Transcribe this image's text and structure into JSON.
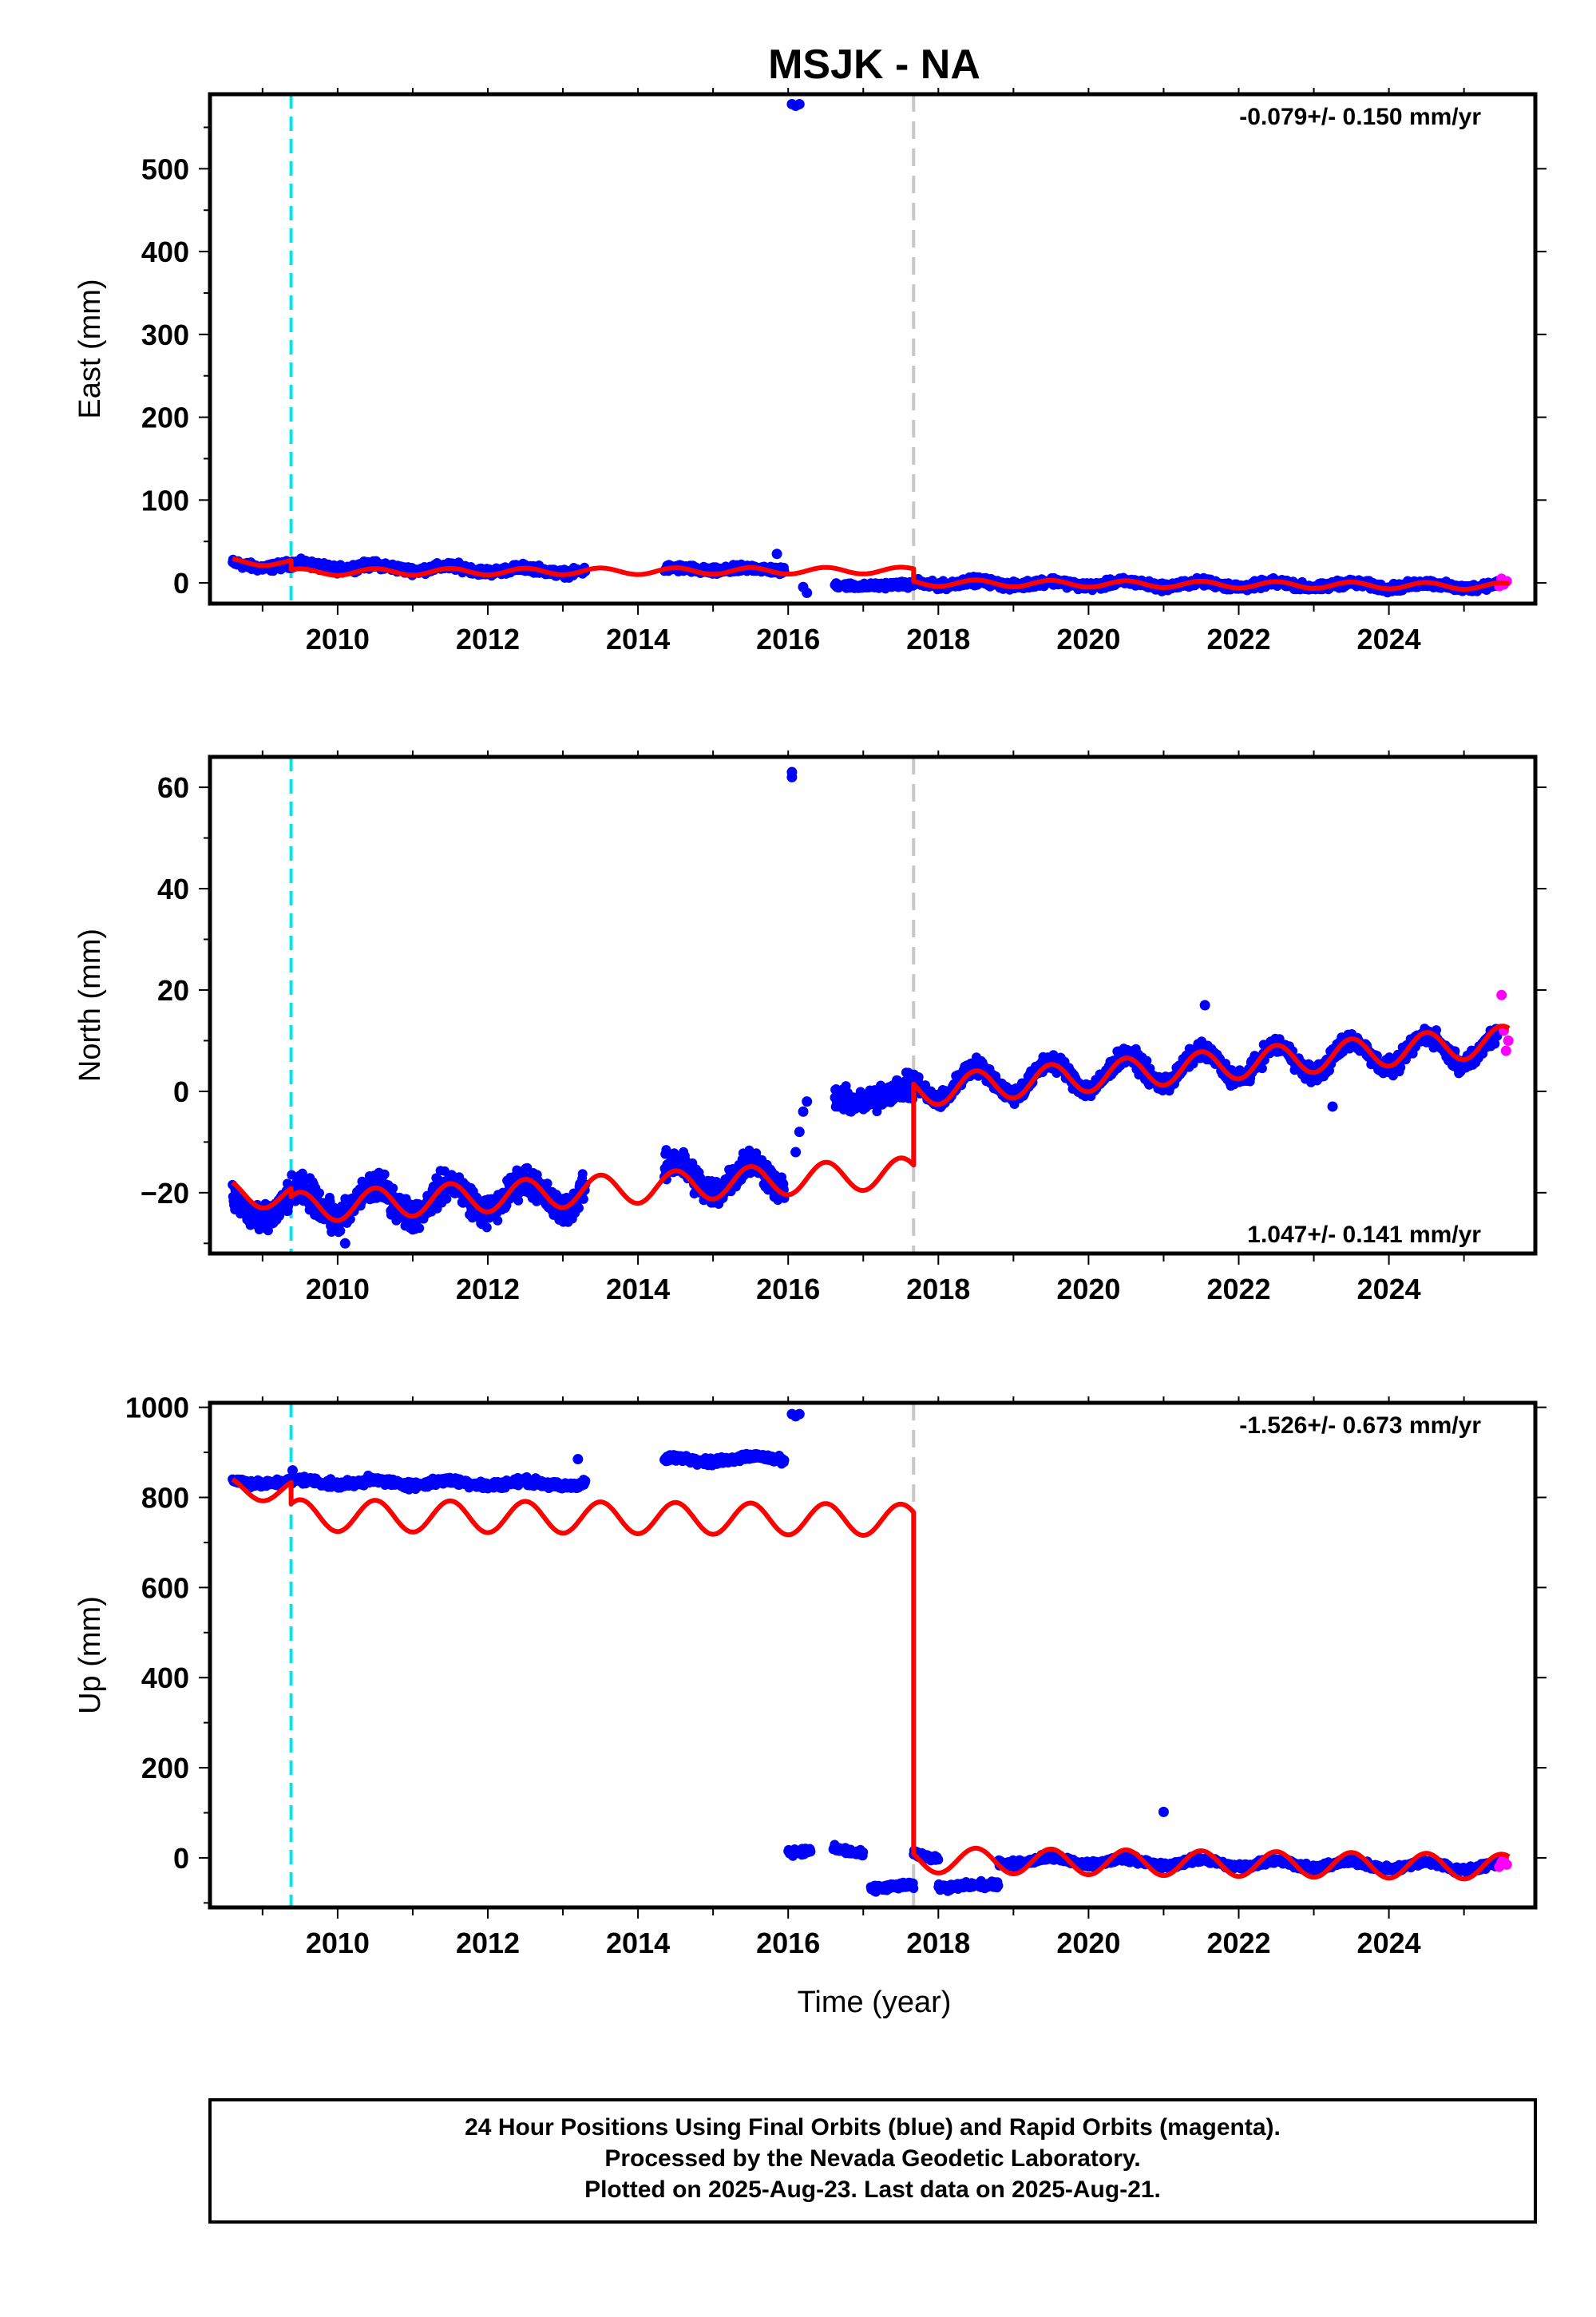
{
  "figure_title": "MSJK - NA",
  "xlabel": "Time (year)",
  "footer": {
    "line1": "24 Hour Positions Using Final Orbits (blue) and Rapid Orbits (magenta).",
    "line2": "Processed by the Nevada Geodetic Laboratory.",
    "line3": "Plotted on 2025-Aug-23. Last data on 2025-Aug-21."
  },
  "colors": {
    "final_orbits": "#0000ff",
    "rapid_orbits": "#ff00ff",
    "model": "#ff0000",
    "equipment_change": "#00e5ee",
    "offset_line": "#c8c8c8"
  },
  "chart_data": [
    {
      "type": "scatter",
      "ylabel": "East (mm)",
      "rate_label": "-0.079+/- 0.150 mm/yr",
      "rate_position": "top-right",
      "xlim": [
        2008.3,
        2025.95
      ],
      "ylim": [
        -25,
        590
      ],
      "x_ticks": [
        2010,
        2012,
        2014,
        2016,
        2018,
        2020,
        2022,
        2024
      ],
      "y_ticks": [
        0,
        100,
        200,
        300,
        400,
        500
      ],
      "vlines": [
        {
          "x": 2009.38,
          "style": "cyan-dashed"
        },
        {
          "x": 2017.67,
          "style": "gray-dashed"
        }
      ],
      "blue_segments": [
        {
          "x0": 2008.6,
          "x1": 2013.3,
          "y0": 22,
          "y1": 14,
          "amp": 3,
          "noise": 4
        },
        {
          "x0": 2014.35,
          "x1": 2015.95,
          "y0": 16,
          "y1": 16,
          "amp": 2,
          "noise": 4
        },
        {
          "x0": 2016.62,
          "x1": 2017.67,
          "y0": -3,
          "y1": -3,
          "amp": 1,
          "noise": 3
        },
        {
          "x0": 2017.67,
          "x1": 2025.45,
          "y0": 0,
          "y1": -4,
          "amp": 3,
          "noise": 4
        }
      ],
      "outliers": [
        {
          "x": 2016.05,
          "y": 578
        },
        {
          "x": 2016.1,
          "y": 576
        },
        {
          "x": 2016.15,
          "y": 578
        },
        {
          "x": 2016.2,
          "y": -5
        },
        {
          "x": 2016.25,
          "y": -12
        },
        {
          "x": 2015.85,
          "y": 35
        }
      ],
      "magenta": [
        {
          "x": 2025.47,
          "y": -4
        },
        {
          "x": 2025.5,
          "y": 5
        },
        {
          "x": 2025.53,
          "y": -2
        },
        {
          "x": 2025.57,
          "y": 2
        }
      ],
      "model_segments": [
        {
          "x0": 2008.6,
          "x1": 2009.38,
          "y0": 26,
          "y1": 24,
          "amp": 4
        },
        {
          "x0": 2009.38,
          "x1": 2017.67,
          "y0": 13,
          "y1": 15,
          "amp": 4
        },
        {
          "x0": 2017.67,
          "x1": 2025.6,
          "y0": 0,
          "y1": -4,
          "amp": 4
        }
      ]
    },
    {
      "type": "scatter",
      "ylabel": "North (mm)",
      "rate_label": "1.047+/- 0.141 mm/yr",
      "rate_position": "bottom-right",
      "xlim": [
        2008.3,
        2025.95
      ],
      "ylim": [
        -32,
        66
      ],
      "x_ticks": [
        2010,
        2012,
        2014,
        2016,
        2018,
        2020,
        2022,
        2024
      ],
      "y_ticks": [
        -20,
        0,
        20,
        40,
        60
      ],
      "vlines": [
        {
          "x": 2009.38,
          "style": "cyan-dashed"
        },
        {
          "x": 2017.67,
          "style": "gray-dashed"
        }
      ],
      "blue_segments": [
        {
          "x0": 2008.6,
          "x1": 2013.3,
          "y0": -23,
          "y1": -20,
          "amp": 3,
          "noise": 2.5
        },
        {
          "x0": 2014.35,
          "x1": 2015.95,
          "y0": -17,
          "y1": -17,
          "amp": 3,
          "noise": 2.5
        },
        {
          "x0": 2016.62,
          "x1": 2017.67,
          "y0": -2,
          "y1": 0,
          "amp": 1,
          "noise": 2
        },
        {
          "x0": 2017.67,
          "x1": 2025.45,
          "y0": 1,
          "y1": 9,
          "amp": 3,
          "noise": 1.5
        }
      ],
      "outliers": [
        {
          "x": 2016.05,
          "y": 63
        },
        {
          "x": 2016.05,
          "y": 62
        },
        {
          "x": 2016.15,
          "y": -8
        },
        {
          "x": 2016.2,
          "y": -4
        },
        {
          "x": 2016.25,
          "y": -2
        },
        {
          "x": 2016.1,
          "y": -12
        },
        {
          "x": 2021.55,
          "y": 17
        },
        {
          "x": 2023.25,
          "y": -3
        },
        {
          "x": 2010.1,
          "y": -30
        }
      ],
      "magenta": [
        {
          "x": 2025.5,
          "y": 19
        },
        {
          "x": 2025.53,
          "y": 12
        },
        {
          "x": 2025.56,
          "y": 8
        },
        {
          "x": 2025.59,
          "y": 10
        }
      ],
      "model_segments": [
        {
          "x0": 2008.6,
          "x1": 2009.38,
          "y0": -20,
          "y1": -21,
          "amp": 2.5
        },
        {
          "x0": 2009.38,
          "x1": 2017.67,
          "y0": -23,
          "y1": -16,
          "amp": 3
        },
        {
          "x0": 2017.67,
          "x1": 2025.6,
          "y0": 0,
          "y1": 10,
          "amp": 3
        }
      ]
    },
    {
      "type": "scatter",
      "ylabel": "Up (mm)",
      "rate_label": "-1.526+/- 0.673 mm/yr",
      "rate_position": "top-right",
      "xlim": [
        2008.3,
        2025.95
      ],
      "ylim": [
        -110,
        1010
      ],
      "x_ticks": [
        2010,
        2012,
        2014,
        2016,
        2018,
        2020,
        2022,
        2024
      ],
      "y_ticks": [
        0,
        200,
        400,
        600,
        800,
        1000
      ],
      "vlines": [
        {
          "x": 2009.38,
          "style": "cyan-dashed"
        },
        {
          "x": 2017.67,
          "style": "gray-dashed"
        }
      ],
      "blue_segments": [
        {
          "x0": 2008.6,
          "x1": 2013.3,
          "y0": 835,
          "y1": 830,
          "amp": 5,
          "noise": 7
        },
        {
          "x0": 2014.35,
          "x1": 2015.95,
          "y0": 882,
          "y1": 888,
          "amp": 5,
          "noise": 7
        },
        {
          "x0": 2016.0,
          "x1": 2016.3,
          "y0": 15,
          "y1": 15,
          "amp": 2,
          "noise": 6
        },
        {
          "x0": 2016.6,
          "x1": 2017.0,
          "y0": 20,
          "y1": 10,
          "amp": 2,
          "noise": 6
        },
        {
          "x0": 2017.1,
          "x1": 2017.67,
          "y0": -68,
          "y1": -62,
          "amp": 2,
          "noise": 6
        },
        {
          "x0": 2017.67,
          "x1": 2018.0,
          "y0": 10,
          "y1": 0,
          "amp": 2,
          "noise": 6
        },
        {
          "x0": 2018.0,
          "x1": 2018.8,
          "y0": -65,
          "y1": -60,
          "amp": 2,
          "noise": 6
        },
        {
          "x0": 2018.8,
          "x1": 2025.45,
          "y0": -5,
          "y1": -20,
          "amp": 8,
          "noise": 6
        }
      ],
      "outliers": [
        {
          "x": 2016.05,
          "y": 985
        },
        {
          "x": 2016.1,
          "y": 980
        },
        {
          "x": 2016.15,
          "y": 985
        },
        {
          "x": 2013.2,
          "y": 885
        },
        {
          "x": 2021.0,
          "y": 102
        },
        {
          "x": 2009.4,
          "y": 860
        }
      ],
      "magenta": [
        {
          "x": 2025.47,
          "y": -20
        },
        {
          "x": 2025.5,
          "y": -10
        },
        {
          "x": 2025.53,
          "y": -2
        },
        {
          "x": 2025.57,
          "y": -15
        }
      ],
      "model_segments": [
        {
          "x0": 2008.6,
          "x1": 2009.38,
          "y0": 820,
          "y1": 815,
          "amp": 25
        },
        {
          "x0": 2009.38,
          "x1": 2017.67,
          "y0": 760,
          "y1": 750,
          "amp": 35
        },
        {
          "x0": 2017.67,
          "x1": 2025.6,
          "y0": -5,
          "y1": -20,
          "amp": 28
        }
      ]
    }
  ]
}
